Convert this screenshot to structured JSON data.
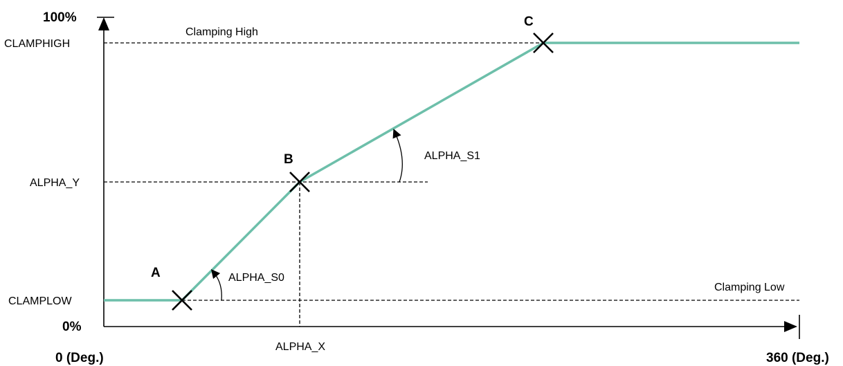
{
  "axis_labels": {
    "y_max": "100%",
    "y_min": "0%",
    "x_min": "0 (Deg.)",
    "x_max": "360 (Deg.)",
    "clamp_high": "CLAMPHIGH",
    "alpha_y": "ALPHA_Y",
    "clamp_low": "CLAMPLOW",
    "alpha_x": "ALPHA_X"
  },
  "annotations": {
    "clamping_high": "Clamping High",
    "clamping_low": "Clamping Low",
    "slope0": "ALPHA_S0",
    "slope1": "ALPHA_S1"
  },
  "points": {
    "a": "A",
    "b": "B",
    "c": "C"
  },
  "colors": {
    "curve": "#6dbfaa",
    "axis": "#000000"
  }
}
